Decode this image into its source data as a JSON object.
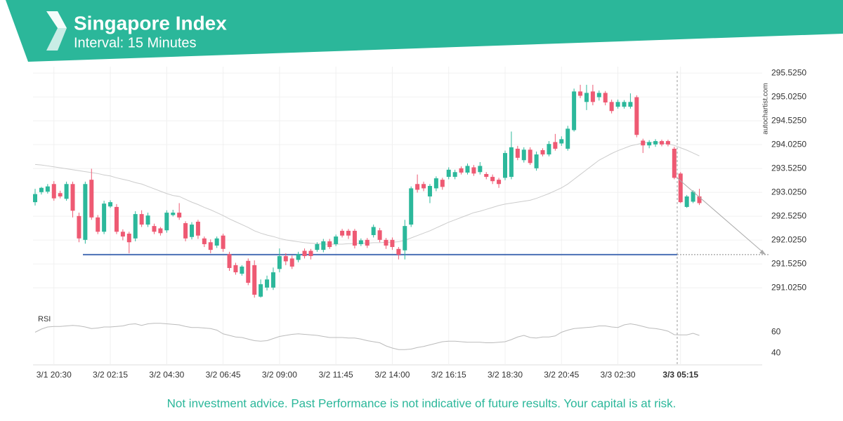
{
  "header": {
    "title": "Singapore Index",
    "subtitle": "Interval: 15 Minutes"
  },
  "watermark": "autochartist.com",
  "footer": "Not investment advice. Past Performance is not indicative of future results. Your capital is at risk.",
  "chart_data": [
    {
      "type": "candlestick",
      "categories": [
        null,
        null,
        null,
        "3/1 20:30",
        null,
        null,
        null,
        null,
        null,
        null,
        null,
        null,
        "3/2 02:15",
        null,
        null,
        null,
        null,
        null,
        null,
        null,
        null,
        "3/2 04:30",
        null,
        null,
        null,
        null,
        null,
        null,
        null,
        null,
        "3/2 06:45",
        null,
        null,
        null,
        null,
        null,
        null,
        null,
        null,
        "3/2 09:00",
        null,
        null,
        null,
        null,
        null,
        null,
        null,
        null,
        "3/2 11:45",
        null,
        null,
        null,
        null,
        null,
        null,
        null,
        null,
        "3/2 14:00",
        null,
        null,
        null,
        null,
        null,
        null,
        null,
        null,
        "3/2 16:15",
        null,
        null,
        null,
        null,
        null,
        null,
        null,
        null,
        "3/2 18:30",
        null,
        null,
        null,
        null,
        null,
        null,
        null,
        null,
        "3/2 20:45",
        null,
        null,
        null,
        null,
        null,
        null,
        null,
        null,
        "3/3 02:30",
        null,
        null,
        null,
        null,
        null,
        null,
        null,
        null,
        null,
        "3/3 05:15",
        null,
        null,
        null
      ],
      "open": [
        292.82,
        293.03,
        293.04,
        293.2,
        293.01,
        292.89,
        293.2,
        292.53,
        292.03,
        293.29,
        292.5,
        292.2,
        292.73,
        292.72,
        292.2,
        292.16,
        292.06,
        292.57,
        292.35,
        292.32,
        292.27,
        292.23,
        292.55,
        292.6,
        292.38,
        292.09,
        292.41,
        292.06,
        291.98,
        291.91,
        292.12,
        291.73,
        291.5,
        291.32,
        291.59,
        291.5,
        290.84,
        291.03,
        291.03,
        291.42,
        291.69,
        291.64,
        291.61,
        291.8,
        291.8,
        291.82,
        291.82,
        292.0,
        291.94,
        292.22,
        292.22,
        292.22,
        291.94,
        292.03,
        292.13,
        292.23,
        292.03,
        292.03,
        291.84,
        291.81,
        292.35,
        293.2,
        293.2,
        292.94,
        293.11,
        293.29,
        293.35,
        293.35,
        293.53,
        293.44,
        293.55,
        293.45,
        293.41,
        293.35,
        293.29,
        293.33,
        293.35,
        293.94,
        293.7,
        293.92,
        293.53,
        293.91,
        293.82,
        294.08,
        294.05,
        293.94,
        294.33,
        295.14,
        294.92,
        295.14,
        295.02,
        295.11,
        294.92,
        294.82,
        294.82,
        294.82,
        295.02,
        294.11,
        294.01,
        294.03,
        294.1,
        294.1,
        293.94,
        293.42,
        292.72,
        292.83,
        292.94
      ],
      "high": [
        293.1,
        293.14,
        293.2,
        293.26,
        293.06,
        293.25,
        293.25,
        292.6,
        293.25,
        293.52,
        292.55,
        292.85,
        292.86,
        292.78,
        292.25,
        292.2,
        292.63,
        292.65,
        292.6,
        292.37,
        292.3,
        292.65,
        292.66,
        292.8,
        292.42,
        292.4,
        292.45,
        292.1,
        292.04,
        292.1,
        292.16,
        291.78,
        291.55,
        291.5,
        291.64,
        291.6,
        291.2,
        291.28,
        291.45,
        291.85,
        291.75,
        291.7,
        291.78,
        291.85,
        291.84,
        291.98,
        292.05,
        292.05,
        292.14,
        292.26,
        292.26,
        292.26,
        292.06,
        292.07,
        292.35,
        292.28,
        292.07,
        292.08,
        291.88,
        292.45,
        293.15,
        293.4,
        293.25,
        293.2,
        293.36,
        293.33,
        293.55,
        293.5,
        293.57,
        293.63,
        293.6,
        293.66,
        293.45,
        293.4,
        293.33,
        293.9,
        294.3,
        294.0,
        293.97,
        293.97,
        293.88,
        293.95,
        294.1,
        294.25,
        294.2,
        294.42,
        295.2,
        295.28,
        295.28,
        295.28,
        295.16,
        295.15,
        294.97,
        294.97,
        294.96,
        295.1,
        295.06,
        294.15,
        294.12,
        294.14,
        294.13,
        294.13,
        293.98,
        293.45,
        292.97,
        293.07,
        293.1
      ],
      "low": [
        292.75,
        292.98,
        293.0,
        292.85,
        292.9,
        292.85,
        292.5,
        291.98,
        291.95,
        292.45,
        292.15,
        292.15,
        292.7,
        292.15,
        292.02,
        291.75,
        292.0,
        292.3,
        292.3,
        292.15,
        292.12,
        292.18,
        292.52,
        292.45,
        292.0,
        292.04,
        292.05,
        291.88,
        291.75,
        291.86,
        291.78,
        291.38,
        291.3,
        291.28,
        291.08,
        290.82,
        290.82,
        290.97,
        290.98,
        291.35,
        291.5,
        291.42,
        291.56,
        291.64,
        291.62,
        291.78,
        291.77,
        291.84,
        291.9,
        292.08,
        292.05,
        291.85,
        291.9,
        291.86,
        292.08,
        291.98,
        291.84,
        291.82,
        291.62,
        291.62,
        292.3,
        293.02,
        293.05,
        292.8,
        293.05,
        293.08,
        293.3,
        293.3,
        293.4,
        293.4,
        293.37,
        293.4,
        293.3,
        293.2,
        293.12,
        293.28,
        293.3,
        293.7,
        293.65,
        293.6,
        293.48,
        293.78,
        293.78,
        293.9,
        294.0,
        293.9,
        294.3,
        295.0,
        294.75,
        294.85,
        294.95,
        294.85,
        294.68,
        294.78,
        294.78,
        294.78,
        294.18,
        293.85,
        293.95,
        293.98,
        293.99,
        293.99,
        293.3,
        292.8,
        292.7,
        292.8,
        292.76
      ],
      "close": [
        292.99,
        293.12,
        293.15,
        292.9,
        292.94,
        293.2,
        292.64,
        292.06,
        293.2,
        292.5,
        292.2,
        292.79,
        292.82,
        292.2,
        292.1,
        291.98,
        292.57,
        292.35,
        292.54,
        292.2,
        292.17,
        292.6,
        292.6,
        292.5,
        292.06,
        292.35,
        292.12,
        291.94,
        291.82,
        292.06,
        291.84,
        291.44,
        291.35,
        291.47,
        291.13,
        290.88,
        291.1,
        291.2,
        291.35,
        291.69,
        291.58,
        291.47,
        291.73,
        291.69,
        291.69,
        291.94,
        292.0,
        291.88,
        292.1,
        292.12,
        292.12,
        291.91,
        292.02,
        291.91,
        292.3,
        292.03,
        291.91,
        291.88,
        291.72,
        292.32,
        293.11,
        293.08,
        293.11,
        293.16,
        293.32,
        293.14,
        293.5,
        293.45,
        293.44,
        293.58,
        293.42,
        293.58,
        293.35,
        293.26,
        293.2,
        293.85,
        293.97,
        293.75,
        293.92,
        293.64,
        293.82,
        293.82,
        294.04,
        293.94,
        294.14,
        294.36,
        295.14,
        295.05,
        295.11,
        294.92,
        295.11,
        294.91,
        294.73,
        294.92,
        294.92,
        294.92,
        294.23,
        294.01,
        294.08,
        294.1,
        294.03,
        294.03,
        293.33,
        292.82,
        292.94,
        293.04,
        292.8
      ],
      "moving_average": [
        293.61,
        293.6,
        293.58,
        293.56,
        293.54,
        293.52,
        293.5,
        293.48,
        293.46,
        293.44,
        293.42,
        293.39,
        293.37,
        293.33,
        293.3,
        293.27,
        293.23,
        293.2,
        293.15,
        293.1,
        293.05,
        293.0,
        292.96,
        292.94,
        292.88,
        292.82,
        292.77,
        292.71,
        292.66,
        292.6,
        292.54,
        292.47,
        292.41,
        292.35,
        292.29,
        292.22,
        292.17,
        292.13,
        292.1,
        292.06,
        292.03,
        292.01,
        291.99,
        291.97,
        291.96,
        291.95,
        291.94,
        291.94,
        291.94,
        291.94,
        291.95,
        291.95,
        291.96,
        291.96,
        291.97,
        291.97,
        291.98,
        291.98,
        291.99,
        292.02,
        292.07,
        292.12,
        292.17,
        292.22,
        292.28,
        292.34,
        292.4,
        292.45,
        292.5,
        292.55,
        292.6,
        292.63,
        292.67,
        292.71,
        292.75,
        292.78,
        292.8,
        292.82,
        292.84,
        292.86,
        292.9,
        292.95,
        293.0,
        293.06,
        293.12,
        293.2,
        293.3,
        293.4,
        293.5,
        293.6,
        293.7,
        293.77,
        293.84,
        293.9,
        293.95,
        294.0,
        294.03,
        294.06,
        294.07,
        294.07,
        294.06,
        294.04,
        294.01,
        293.96,
        293.91,
        293.85,
        293.79
      ],
      "ma_color": "#cccccc",
      "support_level": 291.72,
      "support_color": "#4a6fb5",
      "up_color": "#2cb89b",
      "down_color": "#ee5a73",
      "ylim": [
        290.66,
        295.66
      ],
      "yticks": [
        {
          "value": 291.025,
          "label": "291.0250"
        },
        {
          "value": 291.525,
          "label": "291.5250"
        },
        {
          "value": 292.025,
          "label": "292.0250"
        },
        {
          "value": 292.525,
          "label": "292.5250"
        },
        {
          "value": 293.025,
          "label": "293.0250"
        },
        {
          "value": 293.525,
          "label": "293.5250"
        },
        {
          "value": 294.025,
          "label": "294.0250"
        },
        {
          "value": 294.525,
          "label": "294.5250"
        },
        {
          "value": 295.025,
          "label": "295.0250"
        },
        {
          "value": 295.525,
          "label": "295.5250"
        }
      ],
      "grid": true
    },
    {
      "type": "line",
      "title": "RSI",
      "values": [
        60,
        63,
        65,
        65.5,
        65.5,
        66,
        66.5,
        66,
        65,
        63.5,
        64,
        65,
        65,
        65.5,
        66,
        67.5,
        68,
        66.5,
        68,
        68.5,
        68.5,
        68,
        67.5,
        67,
        65.5,
        64.5,
        64.5,
        64,
        63.5,
        62,
        58.5,
        57,
        55.5,
        55,
        53.5,
        52,
        51.5,
        52,
        54,
        56,
        57,
        58,
        58.5,
        58,
        57.5,
        57,
        56,
        55,
        55,
        55,
        54.5,
        54.5,
        53.5,
        52,
        51,
        50,
        47,
        45,
        43.5,
        43.5,
        44,
        45.5,
        46.5,
        48,
        49.5,
        51,
        51.5,
        51.5,
        51,
        50.5,
        50.5,
        50.5,
        50,
        50,
        50.5,
        51,
        53,
        55.5,
        57,
        55,
        54.5,
        55.5,
        55.5,
        56.5,
        60,
        62,
        63.5,
        64,
        64.5,
        65,
        66,
        66,
        65,
        64.5,
        67,
        68,
        67,
        65.5,
        64,
        63.5,
        62.5,
        61,
        57.7,
        57.5,
        57.5,
        59,
        57
      ],
      "color": "#bbbbbb",
      "ylim": [
        29,
        79
      ],
      "yticks": [
        40,
        60
      ]
    }
  ]
}
